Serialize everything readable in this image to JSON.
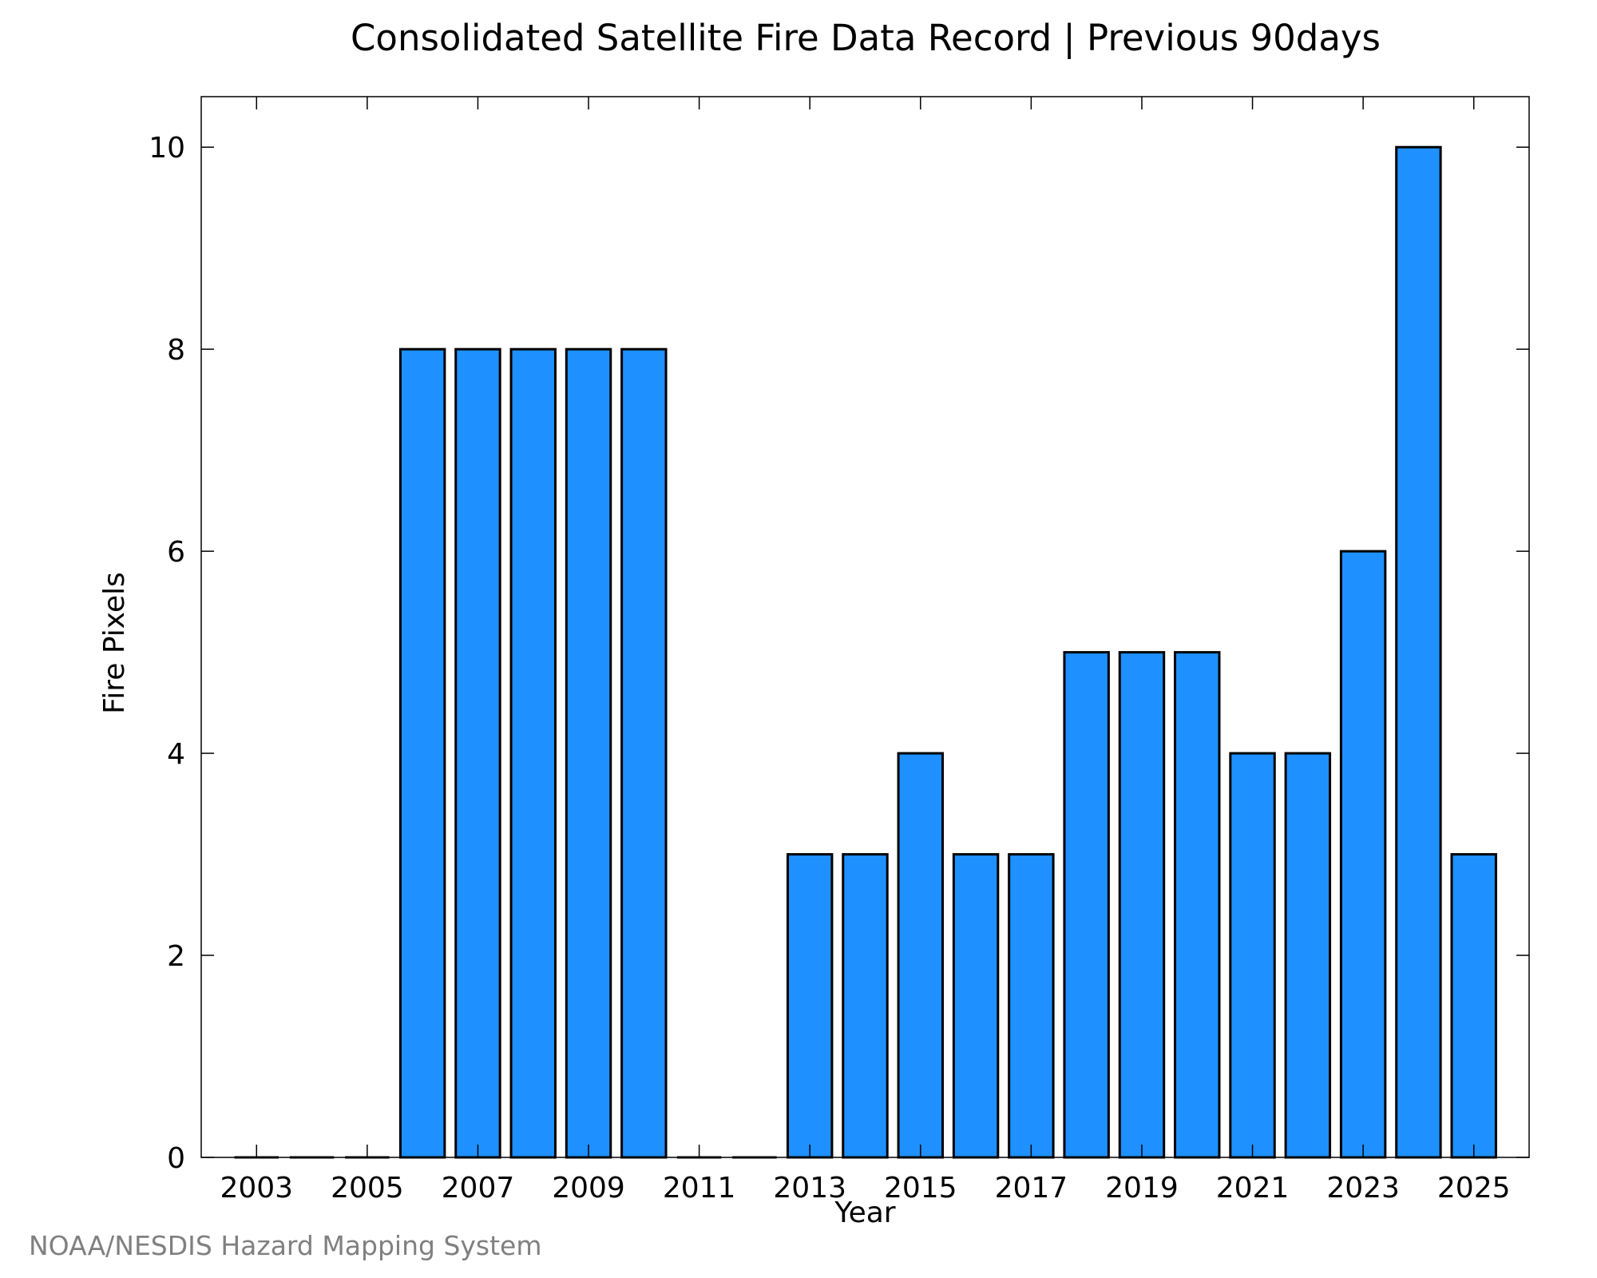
{
  "chart_data": {
    "type": "bar",
    "title": "Consolidated Satellite Fire Data Record | Previous 90days",
    "xlabel": "Year",
    "ylabel": "Fire Pixels",
    "categories": [
      "2003",
      "2004",
      "2005",
      "2006",
      "2007",
      "2008",
      "2009",
      "2010",
      "2011",
      "2012",
      "2013",
      "2014",
      "2015",
      "2016",
      "2017",
      "2018",
      "2019",
      "2020",
      "2021",
      "2022",
      "2023",
      "2024",
      "2025"
    ],
    "values": [
      0,
      0,
      0,
      8,
      8,
      8,
      8,
      8,
      0,
      0,
      3,
      3,
      4,
      3,
      3,
      5,
      5,
      5,
      4,
      4,
      6,
      10,
      3
    ],
    "x_tick_labels": [
      "2003",
      "2005",
      "2007",
      "2009",
      "2011",
      "2013",
      "2015",
      "2017",
      "2019",
      "2021",
      "2023",
      "2025"
    ],
    "y_ticks": [
      0,
      2,
      4,
      6,
      8,
      10
    ],
    "ylim": [
      0,
      10.5
    ],
    "grid": false,
    "bar_color": "#1e90ff",
    "edge_color": "#000000"
  },
  "credit": "NOAA/NESDIS Hazard Mapping System"
}
